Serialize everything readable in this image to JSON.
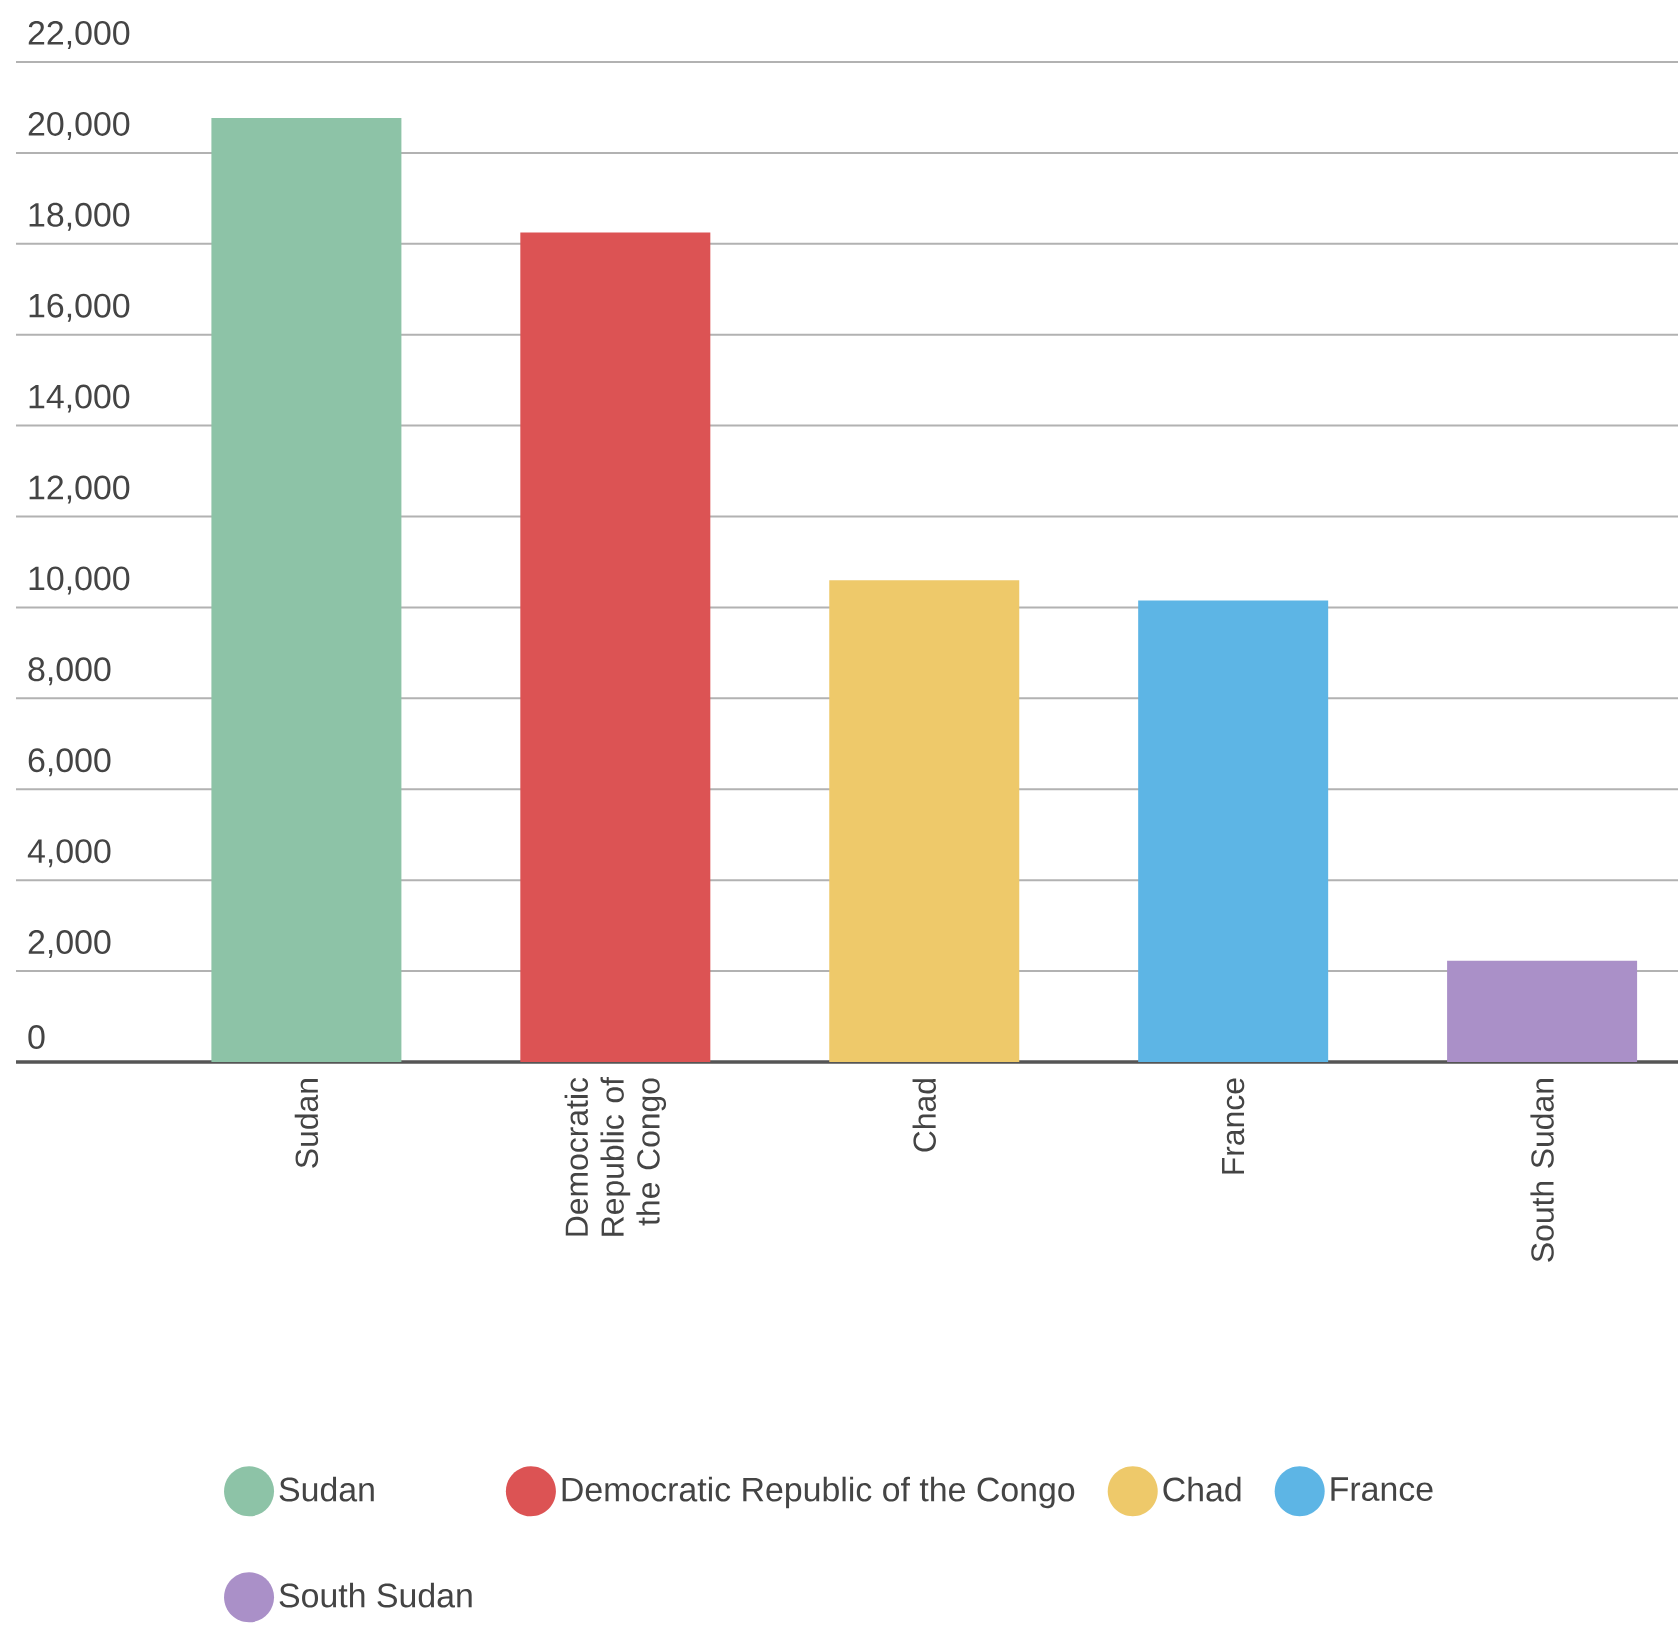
{
  "chart_data": {
    "type": "bar",
    "categories": [
      "Sudan",
      "Democratic Republic of the Congo",
      "Chad",
      "France",
      "South Sudan"
    ],
    "series": [
      {
        "name": "Sudan",
        "color": "#8dc3a7",
        "values": [
          20770,
          null,
          null,
          null,
          null
        ]
      },
      {
        "name": "Democratic Republic of the Congo",
        "color": "#dc5354",
        "values": [
          null,
          18250,
          null,
          null,
          null
        ]
      },
      {
        "name": "Chad",
        "color": "#eec96a",
        "values": [
          null,
          null,
          10600,
          null,
          null
        ]
      },
      {
        "name": "France",
        "color": "#5db5e5",
        "values": [
          null,
          null,
          null,
          10150,
          null
        ]
      },
      {
        "name": "South Sudan",
        "color": "#aa90c8",
        "values": [
          null,
          null,
          null,
          null,
          2230
        ]
      }
    ],
    "ylim": [
      0,
      22000
    ],
    "yticks": [
      {
        "value": 0,
        "label": "0"
      },
      {
        "value": 2000,
        "label": "2,000"
      },
      {
        "value": 4000,
        "label": "4,000"
      },
      {
        "value": 6000,
        "label": "6,000"
      },
      {
        "value": 8000,
        "label": "8,000"
      },
      {
        "value": 10000,
        "label": "10,000"
      },
      {
        "value": 12000,
        "label": "12,000"
      },
      {
        "value": 14000,
        "label": "14,000"
      },
      {
        "value": 16000,
        "label": "16,000"
      },
      {
        "value": 18000,
        "label": "18,000"
      },
      {
        "value": 20000,
        "label": "20,000"
      },
      {
        "value": 22000,
        "label": "22,000"
      }
    ],
    "grid": "y",
    "legend": "bottom"
  }
}
